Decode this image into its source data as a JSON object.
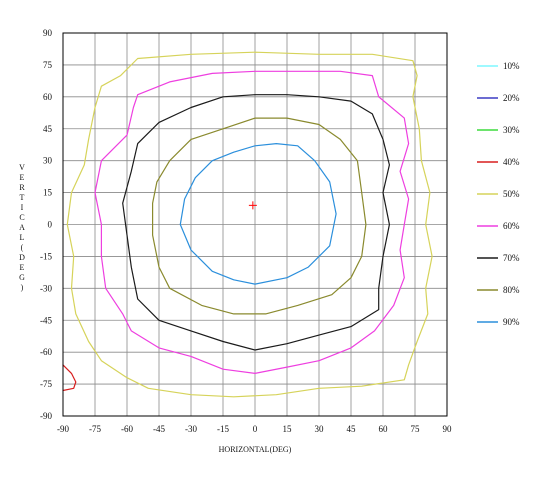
{
  "chart_data": {
    "type": "line",
    "title": "",
    "xlabel": "HORIZONTAL(DEG)",
    "ylabel": "VERTICAL(DEG)",
    "xlim": [
      -90,
      90
    ],
    "ylim": [
      -90,
      90
    ],
    "x_ticks": [
      -90,
      -75,
      -60,
      -45,
      -30,
      -15,
      0,
      15,
      30,
      45,
      60,
      75,
      90
    ],
    "y_ticks": [
      -90,
      -75,
      -60,
      -45,
      -30,
      -15,
      0,
      15,
      30,
      45,
      60,
      75,
      90
    ],
    "grid": true,
    "legend_position": "right",
    "center_marker": {
      "x": -1,
      "y": 9,
      "color": "#ff0000"
    },
    "series": [
      {
        "name": "10%",
        "color": "#7ff7ff",
        "points": []
      },
      {
        "name": "20%",
        "color": "#3b3bc4",
        "points": []
      },
      {
        "name": "30%",
        "color": "#3ddc3d",
        "points": []
      },
      {
        "name": "40%",
        "color": "#d81e1e",
        "points": [
          [
            -90,
            -66
          ],
          [
            -86,
            -70
          ],
          [
            -84,
            -74
          ],
          [
            -85,
            -77
          ],
          [
            -90,
            -78
          ]
        ]
      },
      {
        "name": "50%",
        "color": "#d6d35a",
        "points": [
          [
            -55,
            78
          ],
          [
            -30,
            80
          ],
          [
            0,
            81
          ],
          [
            30,
            80
          ],
          [
            55,
            80
          ],
          [
            74,
            77
          ],
          [
            76,
            70
          ],
          [
            74,
            60
          ],
          [
            77,
            45
          ],
          [
            78,
            30
          ],
          [
            82,
            15
          ],
          [
            80,
            0
          ],
          [
            83,
            -15
          ],
          [
            80,
            -30
          ],
          [
            81,
            -42
          ],
          [
            76,
            -55
          ],
          [
            72,
            -66
          ],
          [
            70,
            -73
          ],
          [
            50,
            -76
          ],
          [
            30,
            -77
          ],
          [
            10,
            -80
          ],
          [
            -10,
            -81
          ],
          [
            -30,
            -80
          ],
          [
            -50,
            -77
          ],
          [
            -60,
            -72
          ],
          [
            -72,
            -64
          ],
          [
            -78,
            -55
          ],
          [
            -84,
            -42
          ],
          [
            -86,
            -30
          ],
          [
            -85,
            -15
          ],
          [
            -88,
            0
          ],
          [
            -86,
            15
          ],
          [
            -80,
            28
          ],
          [
            -78,
            40
          ],
          [
            -75,
            55
          ],
          [
            -72,
            65
          ],
          [
            -63,
            70
          ],
          [
            -55,
            78
          ]
        ]
      },
      {
        "name": "60%",
        "color": "#ee3fe0",
        "points": [
          [
            -55,
            61
          ],
          [
            -40,
            67
          ],
          [
            -20,
            71
          ],
          [
            0,
            72
          ],
          [
            20,
            72
          ],
          [
            40,
            72
          ],
          [
            55,
            70
          ],
          [
            58,
            60
          ],
          [
            70,
            50
          ],
          [
            72,
            38
          ],
          [
            68,
            25
          ],
          [
            72,
            12
          ],
          [
            70,
            0
          ],
          [
            68,
            -12
          ],
          [
            70,
            -25
          ],
          [
            65,
            -38
          ],
          [
            56,
            -50
          ],
          [
            45,
            -58
          ],
          [
            30,
            -64
          ],
          [
            15,
            -67
          ],
          [
            0,
            -70
          ],
          [
            -15,
            -68
          ],
          [
            -30,
            -62
          ],
          [
            -45,
            -58
          ],
          [
            -58,
            -50
          ],
          [
            -62,
            -42
          ],
          [
            -70,
            -30
          ],
          [
            -72,
            -15
          ],
          [
            -72,
            0
          ],
          [
            -75,
            15
          ],
          [
            -72,
            30
          ],
          [
            -60,
            42
          ],
          [
            -57,
            55
          ],
          [
            -55,
            61
          ]
        ]
      },
      {
        "name": "70%",
        "color": "#1b1b1b",
        "points": [
          [
            -45,
            48
          ],
          [
            -30,
            55
          ],
          [
            -15,
            60
          ],
          [
            0,
            61
          ],
          [
            15,
            61
          ],
          [
            30,
            60
          ],
          [
            45,
            58
          ],
          [
            55,
            52
          ],
          [
            60,
            40
          ],
          [
            63,
            28
          ],
          [
            60,
            15
          ],
          [
            63,
            0
          ],
          [
            60,
            -15
          ],
          [
            58,
            -30
          ],
          [
            58,
            -40
          ],
          [
            45,
            -48
          ],
          [
            30,
            -52
          ],
          [
            15,
            -56
          ],
          [
            0,
            -59
          ],
          [
            -15,
            -55
          ],
          [
            -30,
            -50
          ],
          [
            -45,
            -45
          ],
          [
            -55,
            -35
          ],
          [
            -58,
            -20
          ],
          [
            -60,
            -5
          ],
          [
            -62,
            10
          ],
          [
            -58,
            25
          ],
          [
            -55,
            38
          ],
          [
            -45,
            48
          ]
        ]
      },
      {
        "name": "80%",
        "color": "#8a8a2e",
        "points": [
          [
            -30,
            40
          ],
          [
            -15,
            45
          ],
          [
            0,
            50
          ],
          [
            15,
            50
          ],
          [
            30,
            47
          ],
          [
            40,
            40
          ],
          [
            48,
            30
          ],
          [
            50,
            15
          ],
          [
            52,
            0
          ],
          [
            50,
            -15
          ],
          [
            45,
            -25
          ],
          [
            36,
            -33
          ],
          [
            20,
            -38
          ],
          [
            5,
            -42
          ],
          [
            -10,
            -42
          ],
          [
            -25,
            -38
          ],
          [
            -40,
            -30
          ],
          [
            -45,
            -20
          ],
          [
            -48,
            -5
          ],
          [
            -48,
            10
          ],
          [
            -46,
            20
          ],
          [
            -40,
            30
          ],
          [
            -30,
            40
          ]
        ]
      },
      {
        "name": "90%",
        "color": "#2b8fdc",
        "points": [
          [
            -20,
            30
          ],
          [
            -10,
            34
          ],
          [
            0,
            37
          ],
          [
            10,
            38
          ],
          [
            20,
            37
          ],
          [
            28,
            30
          ],
          [
            35,
            20
          ],
          [
            38,
            5
          ],
          [
            35,
            -10
          ],
          [
            25,
            -20
          ],
          [
            15,
            -25
          ],
          [
            0,
            -28
          ],
          [
            -10,
            -26
          ],
          [
            -20,
            -22
          ],
          [
            -30,
            -12
          ],
          [
            -35,
            0
          ],
          [
            -33,
            12
          ],
          [
            -28,
            22
          ],
          [
            -20,
            30
          ]
        ]
      }
    ]
  }
}
